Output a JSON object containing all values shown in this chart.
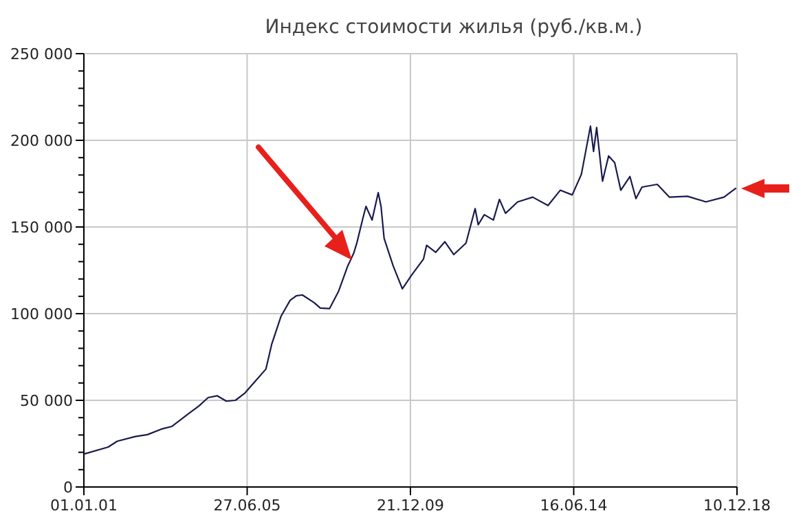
{
  "chart_data": {
    "type": "line",
    "title": "Индекс стоимости жилья (руб./кв.м.)",
    "x": [
      "2001-01-01",
      "2001-09-01",
      "2001-12-01",
      "2002-06-01",
      "2002-10-01",
      "2003-03-01",
      "2003-06-01",
      "2003-12-01",
      "2004-03-01",
      "2004-06-01",
      "2004-09-01",
      "2004-12-01",
      "2005-03-01",
      "2005-06-01",
      "2005-09-01",
      "2006-01-01",
      "2006-03-01",
      "2006-06-01",
      "2006-09-01",
      "2006-11-01",
      "2007-01-01",
      "2007-05-01",
      "2007-07-01",
      "2007-10-01",
      "2008-01-01",
      "2008-04-01",
      "2008-06-01",
      "2008-07-01",
      "2008-09-01",
      "2008-10-01",
      "2008-12-01",
      "2009-02-01",
      "2009-03-01",
      "2009-04-01",
      "2009-07-01",
      "2009-10-01",
      "2010-01-01",
      "2010-05-01",
      "2010-06-01",
      "2010-09-01",
      "2010-12-01",
      "2011-03-01",
      "2011-07-01",
      "2011-10-01",
      "2011-11-01",
      "2012-01-01",
      "2012-04-01",
      "2012-06-01",
      "2012-08-01",
      "2012-12-01",
      "2013-05-01",
      "2013-10-01",
      "2014-02-01",
      "2014-06-01",
      "2014-09-01",
      "2014-12-01",
      "2015-01-01",
      "2015-02-01",
      "2015-04-01",
      "2015-06-01",
      "2015-08-01",
      "2015-10-01",
      "2016-01-01",
      "2016-03-01",
      "2016-05-01",
      "2016-10-01",
      "2017-02-01",
      "2017-08-01",
      "2018-02-01",
      "2018-08-01",
      "2018-12-01"
    ],
    "series": [
      {
        "color": "#1a1a4e",
        "values": [
          19000,
          23000,
          26400,
          29100,
          30200,
          33600,
          34900,
          42900,
          46800,
          51600,
          52600,
          49500,
          50000,
          54000,
          60000,
          68000,
          82500,
          98400,
          107700,
          110300,
          110800,
          106300,
          103200,
          102900,
          113000,
          127500,
          135000,
          140700,
          155300,
          161900,
          154000,
          169800,
          161900,
          143400,
          127500,
          114300,
          122200,
          131500,
          139400,
          135400,
          141500,
          134100,
          140700,
          160600,
          151300,
          157100,
          154000,
          165900,
          157900,
          164500,
          167200,
          162400,
          171200,
          168500,
          180400,
          208200,
          193600,
          207400,
          176400,
          191000,
          187100,
          171200,
          179100,
          166400,
          173000,
          174600,
          167200,
          167700,
          164500,
          167200,
          172500
        ]
      }
    ],
    "xlim": [
      "2001-01-01",
      "2018-12-10"
    ],
    "xticks": [
      {
        "value": "2001-01-01",
        "label": "01.01.01"
      },
      {
        "value": "2005-06-27",
        "label": "27.06.05"
      },
      {
        "value": "2009-12-21",
        "label": "21.12.09"
      },
      {
        "value": "2014-06-16",
        "label": "16.06.14"
      },
      {
        "value": "2018-12-10",
        "label": "10.12.18"
      }
    ],
    "ylim": [
      0,
      250000
    ],
    "yticks": [
      0,
      {
        "value": 10000,
        "label": null
      },
      {
        "value": 20000,
        "label": null
      },
      {
        "value": 30000,
        "label": null
      },
      {
        "value": 40000,
        "label": null
      },
      {
        "value": 50000,
        "label": "50 000"
      },
      {
        "value": 60000,
        "label": null
      },
      {
        "value": 70000,
        "label": null
      },
      {
        "value": 80000,
        "label": null
      },
      {
        "value": 90000,
        "label": null
      },
      {
        "value": 100000,
        "label": "100 000"
      },
      {
        "value": 110000,
        "label": null
      },
      {
        "value": 120000,
        "label": null
      },
      {
        "value": 130000,
        "label": null
      },
      {
        "value": 140000,
        "label": null
      },
      {
        "value": 150000,
        "label": "150 000"
      },
      {
        "value": 160000,
        "label": null
      },
      {
        "value": 170000,
        "label": null
      },
      {
        "value": 180000,
        "label": null
      },
      {
        "value": 190000,
        "label": null
      },
      {
        "value": 200000,
        "label": "200 000"
      },
      {
        "value": 210000,
        "label": null
      },
      {
        "value": 220000,
        "label": null
      },
      {
        "value": 230000,
        "label": null
      },
      {
        "value": 240000,
        "label": null
      },
      {
        "value": 250000,
        "label": "250 000"
      }
    ],
    "grid": true,
    "marker": "none",
    "line_style": "solid"
  }
}
